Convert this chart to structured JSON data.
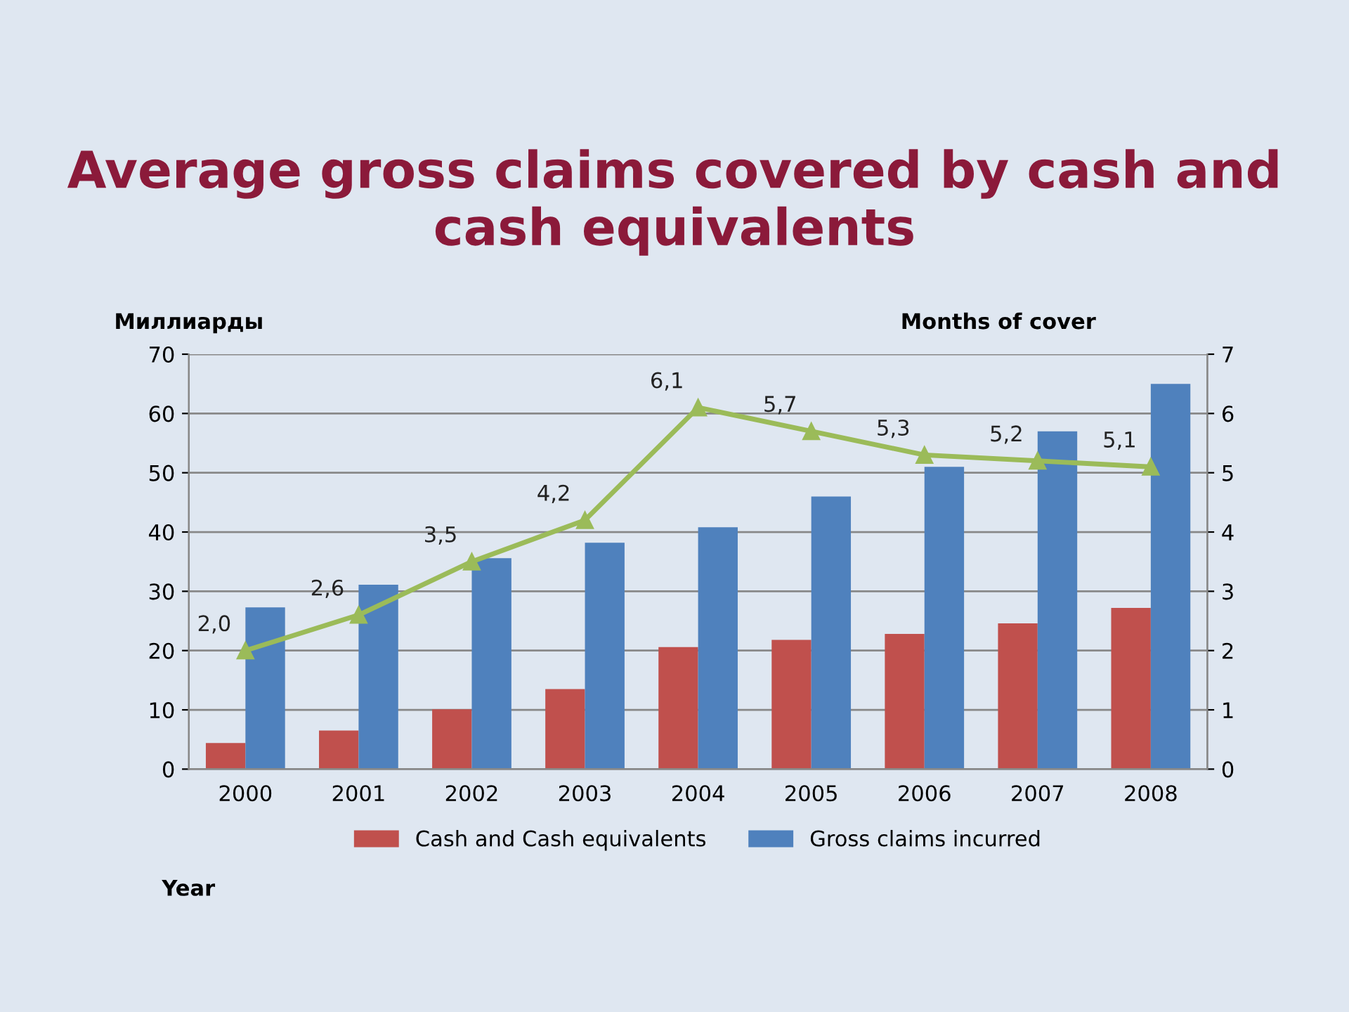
{
  "chart_data": {
    "type": "bar",
    "title": "Average gross claims covered by cash and cash equivalents",
    "ylabel": "Миллиарды",
    "y2label": "Months of cover",
    "xlabel": "Year",
    "categories": [
      "2000",
      "2001",
      "2002",
      "2003",
      "2004",
      "2005",
      "2006",
      "2007",
      "2008"
    ],
    "series": [
      {
        "name": "Cash and Cash equivalents",
        "color": "#c0504d",
        "values": [
          4.4,
          6.5,
          10.1,
          13.5,
          20.6,
          21.8,
          22.8,
          24.6,
          27.2
        ]
      },
      {
        "name": "Gross claims incurred",
        "color": "#4f81bd",
        "values": [
          27.3,
          31.1,
          35.6,
          38.2,
          40.8,
          46.0,
          51.0,
          57.0,
          65.0
        ]
      },
      {
        "type": "line",
        "axis": "y2",
        "color": "#9bbb59",
        "marker": "triangle",
        "values": [
          2.0,
          2.6,
          3.5,
          4.2,
          6.1,
          5.7,
          5.3,
          5.2,
          5.1
        ],
        "value_labels": [
          "2,0",
          "2,6",
          "3,5",
          "4,2",
          "6,1",
          "5,7",
          "5,3",
          "5,2",
          "5,1"
        ]
      }
    ],
    "ylim": [
      0,
      70
    ],
    "yticks": [
      0,
      10,
      20,
      30,
      40,
      50,
      60,
      70
    ],
    "y2lim": [
      0,
      7
    ],
    "y2ticks": [
      0,
      1,
      2,
      3,
      4,
      5,
      6,
      7
    ],
    "grid": "y",
    "legend": "bottom"
  }
}
